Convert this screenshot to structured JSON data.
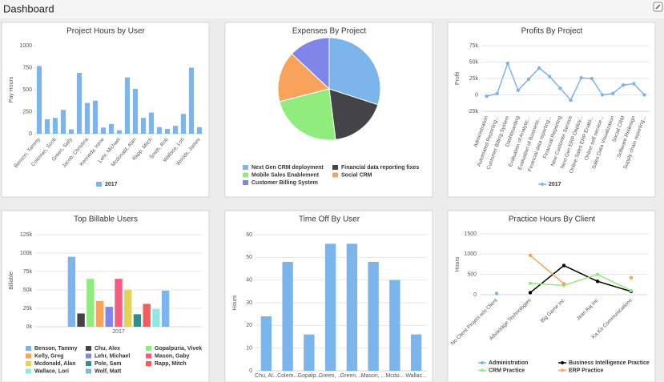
{
  "header": {
    "title": "Dashboard"
  },
  "chart_data": [
    {
      "type": "bar",
      "title": "Project Hours by User",
      "y_label": "Pay Hours",
      "categories": [
        "Benson, Tammy",
        null,
        "Coleman, Scott",
        null,
        "Green, Sally",
        null,
        "Jacob, Christina",
        null,
        "Kennedy, Irene",
        null,
        "Lehr, Michael",
        null,
        "Mcdonald, Alan",
        null,
        "Rapp, Mitch",
        null,
        "Smith, Rob",
        null,
        "Wallace, Lori",
        null,
        "Woods, James"
      ],
      "series": [
        {
          "name": "2017",
          "color": "#7cb5ec",
          "values": [
            770,
            165,
            180,
            270,
            50,
            690,
            350,
            375,
            70,
            110,
            40,
            640,
            510,
            180,
            240,
            75,
            55,
            90,
            225,
            750,
            75
          ]
        }
      ],
      "ylim": [
        0,
        1000
      ],
      "yticks": [
        0,
        250,
        500,
        750,
        1000
      ],
      "grid": false
    },
    {
      "type": "pie",
      "title": "Expenses By Project",
      "labels": [
        "Next Gen CRM deployment",
        "Financial data reporting fixes",
        "Mobile Sales Enablement",
        "Social CRM",
        "Customer Billing System"
      ],
      "values": [
        30,
        18,
        23,
        16,
        13
      ],
      "colors": [
        "#7cb5ec",
        "#434348",
        "#90ed7d",
        "#f7a35c",
        "#8085e9"
      ]
    },
    {
      "type": "line",
      "title": "Profits By Project",
      "y_label": "Profit",
      "categories": [
        "Administration",
        "Automated Reporting...",
        "Customer Billing System",
        "Dashboarding",
        "Evaluation of Analytic...",
        "Evaluation of Business...",
        "Financial data reporting...",
        "Financial Reporting",
        "New Customer Service",
        "Next Gen ERP Deploy...",
        "Online Sales ERP Enabl...",
        "Online self service...",
        "Sales Data Visualization",
        "Social CRM",
        "Software Redesign",
        "Supply chain reporting..."
      ],
      "series": [
        {
          "name": "2017",
          "color": "#7cb5ec",
          "values": [
            -2000,
            2000,
            48000,
            7000,
            24000,
            41000,
            28000,
            10000,
            -8000,
            26000,
            25000,
            0,
            2000,
            15000,
            17000,
            0
          ]
        }
      ],
      "ylim": [
        -25000,
        75000
      ],
      "yticks": [
        {
          "value": -25000,
          "label": "-25k"
        },
        0,
        {
          "value": 25000,
          "label": "25k"
        },
        {
          "value": 50000,
          "label": "50k"
        },
        {
          "value": 75000,
          "label": "75k"
        }
      ],
      "grid": true
    },
    {
      "type": "bar",
      "title": "Top Billable Users",
      "y_label": "Billable",
      "categories": [
        "2017"
      ],
      "series": [
        {
          "name": "Benson, Tammy",
          "color": "#7cb5ec",
          "values": [
            95000
          ]
        },
        {
          "name": "Chu, Alex",
          "color": "#434348",
          "values": [
            18000
          ]
        },
        {
          "name": "Gopalpuria, Vivek",
          "color": "#90ed7d",
          "values": [
            65000
          ]
        },
        {
          "name": "Kelly, Greg",
          "color": "#f7a35c",
          "values": [
            35000
          ]
        },
        {
          "name": "Lehr, Michael",
          "color": "#8085e9",
          "values": [
            27000
          ]
        },
        {
          "name": "Mason, Gaby",
          "color": "#f15c80",
          "values": [
            65000
          ]
        },
        {
          "name": "Mcdonald, Alan",
          "color": "#e4d354",
          "values": [
            50000
          ]
        },
        {
          "name": "Pole, Sam",
          "color": "#2b908f",
          "values": [
            17000
          ]
        },
        {
          "name": "Rapp, Mitch",
          "color": "#f45b5b",
          "values": [
            31000
          ]
        },
        {
          "name": "Wallace, Lori",
          "color": "#91e8e1",
          "values": [
            24000
          ]
        },
        {
          "name": "Wolf, Matt",
          "color": "#7cb5ec",
          "values": [
            49000
          ]
        }
      ],
      "ylim": [
        0,
        125000
      ],
      "yticks": [
        {
          "value": 0,
          "label": "0k"
        },
        {
          "value": 25000,
          "label": "25k"
        },
        {
          "value": 50000,
          "label": "50k"
        },
        {
          "value": 75000,
          "label": "75k"
        },
        {
          "value": 100000,
          "label": "100k"
        },
        {
          "value": 125000,
          "label": "125k"
        }
      ],
      "grid": true
    },
    {
      "type": "bar",
      "title": "Time Off By User",
      "y_label": "Hours",
      "categories": [
        "Chu, Al...",
        "Colem...",
        "Gopalp...",
        "Green, ...",
        "Green, ...",
        "Mason, ...",
        "Mcdo...",
        "Wallac..."
      ],
      "values": [
        24,
        48,
        16,
        56,
        56,
        48,
        40,
        16
      ],
      "color": "#7cb5ec",
      "ylim": [
        0,
        60
      ],
      "yticks": [
        0,
        10,
        20,
        30,
        40,
        50,
        60
      ],
      "grid": true
    },
    {
      "type": "line",
      "title": "Practice Hours By Client",
      "y_label": "Hours",
      "categories": [
        "No Client Project w/o Client",
        "Advantage Technologies",
        "Big Game Inc",
        "Jean Aaj Inc",
        "Ka Ko Communications"
      ],
      "series": [
        {
          "name": "Administration",
          "color": "#7cb5ec",
          "values": [
            30,
            null,
            null,
            null,
            null
          ]
        },
        {
          "name": "Business Intelligence Practice",
          "color": "#000000",
          "values": [
            null,
            50,
            720,
            330,
            80
          ]
        },
        {
          "name": "CRM Practice",
          "color": "#90ed7d",
          "values": [
            null,
            280,
            230,
            500,
            100
          ]
        },
        {
          "name": "ERP Practice",
          "color": "#f7a35c",
          "values": [
            null,
            970,
            270,
            null,
            420
          ]
        }
      ],
      "ylim": [
        0,
        1500
      ],
      "yticks": [
        0,
        500,
        1000,
        1500
      ],
      "grid": true
    }
  ]
}
